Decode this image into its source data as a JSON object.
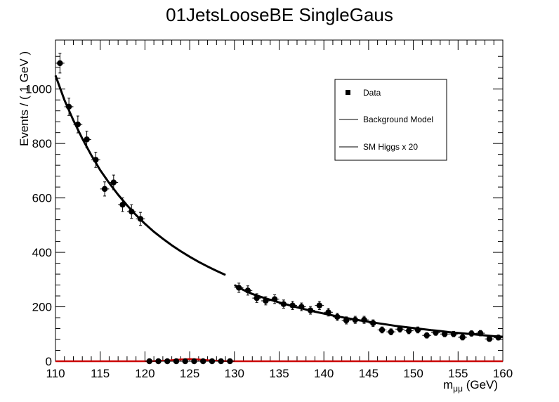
{
  "chart_data": {
    "type": "scatter",
    "title": "01JetsLooseBE SingleGaus",
    "xlabel": "m",
    "xlabel_sub": "μμ",
    "xlabel_unit": " (GeV)",
    "ylabel": "Events / ( 1 GeV )",
    "xlim": [
      110,
      160
    ],
    "ylim": [
      0,
      1180
    ],
    "xticks": [
      "110",
      "115",
      "120",
      "125",
      "130",
      "135",
      "140",
      "145",
      "150",
      "155",
      "160"
    ],
    "yticks": [
      "0",
      "200",
      "400",
      "600",
      "800",
      "1000"
    ],
    "legend": {
      "placement": "top-right",
      "entries": [
        "Data",
        "Background Model",
        "SM Higgs x 20"
      ]
    },
    "colors": {
      "data": "#000000",
      "background": "#000000",
      "signal": "#cc0000"
    },
    "series": [
      {
        "name": "Data",
        "kind": "points",
        "points": [
          [
            110.5,
            1095,
            36
          ],
          [
            111.5,
            935,
            32
          ],
          [
            112.5,
            870,
            31
          ],
          [
            113.5,
            815,
            30
          ],
          [
            114.5,
            740,
            28
          ],
          [
            115.5,
            633,
            26
          ],
          [
            116.5,
            657,
            27
          ],
          [
            117.5,
            575,
            25
          ],
          [
            118.5,
            550,
            25
          ],
          [
            119.5,
            523,
            24
          ],
          [
            120.5,
            0,
            0
          ],
          [
            121.5,
            0,
            0
          ],
          [
            122.5,
            0,
            0
          ],
          [
            123.5,
            0,
            0
          ],
          [
            124.5,
            0,
            0
          ],
          [
            125.5,
            0,
            0
          ],
          [
            126.5,
            0,
            0
          ],
          [
            127.5,
            0,
            0
          ],
          [
            128.5,
            0,
            0
          ],
          [
            129.5,
            0,
            0
          ],
          [
            130.5,
            270,
            17
          ],
          [
            131.5,
            260,
            17
          ],
          [
            132.5,
            232,
            16
          ],
          [
            133.5,
            222,
            15
          ],
          [
            134.5,
            228,
            16
          ],
          [
            135.5,
            210,
            15
          ],
          [
            136.5,
            205,
            15
          ],
          [
            137.5,
            200,
            14
          ],
          [
            138.5,
            187,
            14
          ],
          [
            139.5,
            205,
            15
          ],
          [
            140.5,
            180,
            14
          ],
          [
            141.5,
            163,
            13
          ],
          [
            142.5,
            150,
            13
          ],
          [
            143.5,
            152,
            13
          ],
          [
            144.5,
            152,
            13
          ],
          [
            145.5,
            140,
            12
          ],
          [
            146.5,
            115,
            11
          ],
          [
            147.5,
            108,
            11
          ],
          [
            148.5,
            118,
            11
          ],
          [
            149.5,
            112,
            11
          ],
          [
            150.5,
            115,
            11
          ],
          [
            151.5,
            95,
            10
          ],
          [
            152.5,
            105,
            10
          ],
          [
            153.5,
            100,
            10
          ],
          [
            154.5,
            100,
            10
          ],
          [
            155.5,
            88,
            10
          ],
          [
            156.5,
            102,
            10
          ],
          [
            157.5,
            103,
            10
          ],
          [
            158.5,
            82,
            9
          ],
          [
            159.5,
            87,
            9
          ]
        ]
      },
      {
        "name": "Background Model",
        "kind": "curve",
        "points": [
          [
            110,
            1050
          ],
          [
            111,
            960
          ],
          [
            112,
            885
          ],
          [
            113,
            818
          ],
          [
            114,
            757
          ],
          [
            115,
            702
          ],
          [
            116,
            655
          ],
          [
            117,
            612
          ],
          [
            118,
            573
          ],
          [
            119,
            537
          ],
          [
            120,
            505
          ],
          [
            121,
            476
          ],
          [
            122,
            450
          ],
          [
            123,
            426
          ],
          [
            124,
            404
          ],
          [
            125,
            384
          ],
          [
            126,
            365
          ],
          [
            127,
            348
          ],
          [
            128,
            332
          ],
          [
            129,
            317
          ],
          [
            130,
            280
          ],
          [
            131,
            262
          ],
          [
            132,
            247
          ],
          [
            133,
            236
          ],
          [
            134,
            226
          ],
          [
            135,
            216
          ],
          [
            136,
            207
          ],
          [
            137,
            198
          ],
          [
            138,
            190
          ],
          [
            139,
            182
          ],
          [
            140,
            175
          ],
          [
            141,
            168
          ],
          [
            142,
            162
          ],
          [
            143,
            156
          ],
          [
            144,
            150
          ],
          [
            145,
            145
          ],
          [
            146,
            140
          ],
          [
            147,
            135
          ],
          [
            148,
            130
          ],
          [
            149,
            126
          ],
          [
            150,
            122
          ],
          [
            151,
            118
          ],
          [
            152,
            114
          ],
          [
            153,
            111
          ],
          [
            154,
            107
          ],
          [
            155,
            104
          ],
          [
            156,
            101
          ],
          [
            157,
            98
          ],
          [
            158,
            95
          ],
          [
            159,
            92
          ],
          [
            160,
            90
          ]
        ]
      },
      {
        "name": "SM Higgs x 20",
        "kind": "curve",
        "points": [
          [
            110,
            0
          ],
          [
            120,
            0
          ],
          [
            121,
            0.5
          ],
          [
            122,
            2
          ],
          [
            123,
            4
          ],
          [
            124,
            6.5
          ],
          [
            125,
            8
          ],
          [
            126,
            6.5
          ],
          [
            127,
            4
          ],
          [
            128,
            2
          ],
          [
            129,
            0.5
          ],
          [
            130,
            0
          ],
          [
            160,
            0
          ]
        ]
      }
    ]
  }
}
